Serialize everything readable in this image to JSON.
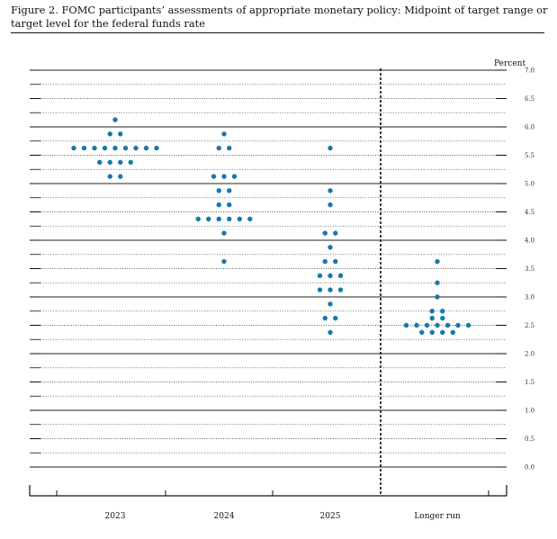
{
  "title": "Figure 2.  FOMC participants’ assessments of appropriate monetary policy:  Midpoint of target range or target level for the federal funds rate",
  "colors": {
    "dot": "#1a78a8",
    "line": "#111111"
  },
  "chart_data": {
    "type": "scatter",
    "title": "Figure 2.  FOMC participants’ assessments of appropriate monetary policy:  Midpoint of target range or target level for the federal funds rate",
    "ylabel": "Percent",
    "ylim": [
      0,
      7
    ],
    "ytick_labels": [
      "0.0",
      "0.5",
      "1.0",
      "1.5",
      "2.0",
      "2.5",
      "3.0",
      "3.5",
      "4.0",
      "4.5",
      "5.0",
      "5.5",
      "6.0",
      "6.5",
      "7.0"
    ],
    "categories": [
      "2023",
      "2024",
      "2025",
      "Longer run"
    ],
    "grid": true,
    "dots": [
      {
        "category": "2023",
        "values": [
          {
            "rate": 6.125,
            "count": 1
          },
          {
            "rate": 5.875,
            "count": 2
          },
          {
            "rate": 5.625,
            "count": 9
          },
          {
            "rate": 5.375,
            "count": 4
          },
          {
            "rate": 5.125,
            "count": 2
          }
        ]
      },
      {
        "category": "2024",
        "values": [
          {
            "rate": 5.875,
            "count": 1
          },
          {
            "rate": 5.625,
            "count": 2
          },
          {
            "rate": 5.125,
            "count": 3
          },
          {
            "rate": 4.875,
            "count": 2
          },
          {
            "rate": 4.625,
            "count": 2
          },
          {
            "rate": 4.375,
            "count": 6
          },
          {
            "rate": 4.125,
            "count": 1
          },
          {
            "rate": 3.625,
            "count": 1
          }
        ]
      },
      {
        "category": "2025",
        "values": [
          {
            "rate": 5.625,
            "count": 1
          },
          {
            "rate": 4.875,
            "count": 1
          },
          {
            "rate": 4.625,
            "count": 1
          },
          {
            "rate": 4.125,
            "count": 2
          },
          {
            "rate": 3.875,
            "count": 1
          },
          {
            "rate": 3.625,
            "count": 2
          },
          {
            "rate": 3.375,
            "count": 3
          },
          {
            "rate": 3.125,
            "count": 3
          },
          {
            "rate": 2.875,
            "count": 1
          },
          {
            "rate": 2.625,
            "count": 2
          },
          {
            "rate": 2.375,
            "count": 1
          }
        ]
      },
      {
        "category": "Longer run",
        "values": [
          {
            "rate": 3.625,
            "count": 1
          },
          {
            "rate": 3.25,
            "count": 1
          },
          {
            "rate": 3.0,
            "count": 1
          },
          {
            "rate": 2.75,
            "count": 2
          },
          {
            "rate": 2.625,
            "count": 2
          },
          {
            "rate": 2.5,
            "count": 7
          },
          {
            "rate": 2.375,
            "count": 4
          }
        ]
      }
    ]
  }
}
